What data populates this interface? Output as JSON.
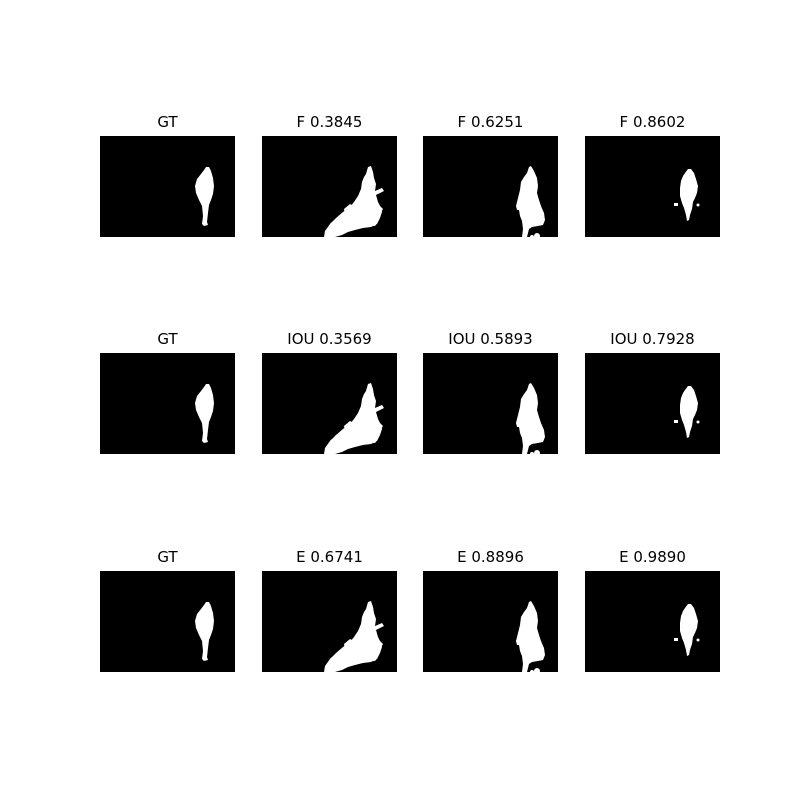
{
  "figure": {
    "background_color": "#ffffff",
    "mask_background_color": "#000000",
    "mask_foreground_color": "#ffffff",
    "rows": [
      {
        "panels": [
          {
            "title": "GT",
            "mask": "gt"
          },
          {
            "title": "F 0.3845",
            "mask": "pred-a"
          },
          {
            "title": "F 0.6251",
            "mask": "pred-b"
          },
          {
            "title": "F 0.8602",
            "mask": "pred-c"
          }
        ]
      },
      {
        "panels": [
          {
            "title": "GT",
            "mask": "gt"
          },
          {
            "title": "IOU 0.3569",
            "mask": "pred-a"
          },
          {
            "title": "IOU 0.5893",
            "mask": "pred-b"
          },
          {
            "title": "IOU 0.7928",
            "mask": "pred-c"
          }
        ]
      },
      {
        "panels": [
          {
            "title": "GT",
            "mask": "gt"
          },
          {
            "title": "E 0.6741",
            "mask": "pred-a"
          },
          {
            "title": "E 0.8896",
            "mask": "pred-b"
          },
          {
            "title": "E 0.9890",
            "mask": "pred-c"
          }
        ]
      }
    ]
  }
}
